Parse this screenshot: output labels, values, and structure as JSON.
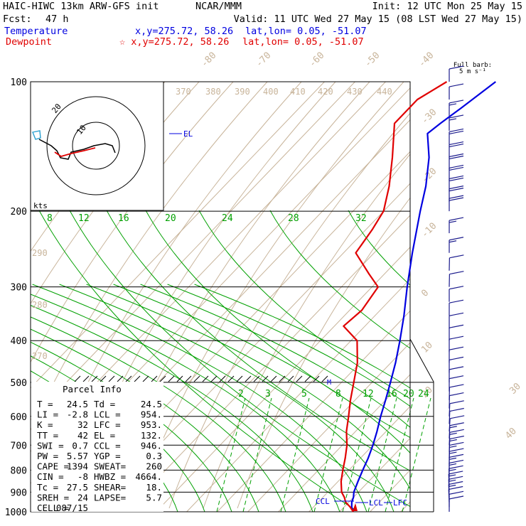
{
  "header": {
    "model": "HAIC-HIWC 13km ARW-GFS init",
    "org": "NCAR/MMM",
    "init": "Init: 12 UTC Mon 25 May 15",
    "fcst_label": "Fcst:",
    "fcst_hours": "47 h",
    "valid": "Valid: 11 UTC Wed 27 May 15 (08 LST Wed 27 May 15)",
    "temperature_label": "Temperature",
    "dewpoint_label": "Dewpoint",
    "temp_xy": "x,y=275.72, 58.26",
    "temp_latlon": "lat,lon=  0.05, -51.07",
    "dew_xy": "☆ x,y=275.72, 58.26",
    "dew_latlon": "lat,lon=  0.05, -51.07",
    "full_barb": "Full barb:",
    "barb_units": "5 m s⁻¹"
  },
  "hodograph": {
    "units": "kts",
    "ring_labels": [
      "20",
      "10"
    ]
  },
  "parcel_info": {
    "title": "Parcel Info",
    "rows": [
      [
        "T",
        "24.5",
        "Td",
        "24.5"
      ],
      [
        "LI",
        "-2.8",
        "LCL",
        "954."
      ],
      [
        "K",
        "32",
        "LFC",
        "953."
      ],
      [
        "TT",
        "42",
        "EL",
        "132."
      ],
      [
        "SWI",
        "0.7",
        "CCL",
        "946."
      ],
      [
        "PW",
        "5.57",
        "YGP",
        "0.3"
      ],
      [
        "CAPE",
        "1394",
        "SWEAT",
        "260"
      ],
      [
        "CIN",
        "-8",
        "HWBZ",
        "4664."
      ],
      [
        "Tc",
        "27.5",
        "SHEAR",
        "18."
      ],
      [
        "SREH",
        "24",
        "LAPSE",
        "5.7"
      ],
      [
        "CELL",
        "087/15",
        "",
        ""
      ]
    ]
  },
  "colors": {
    "temperature": "#0000e0",
    "dewpoint": "#e00000",
    "isotherm": "#c8b49a",
    "dry_adiabat": "#c8b49a",
    "mixing_ratio": "#00a000",
    "moist_adiabat": "#00a000",
    "barb": "#1a1a8c",
    "hodo_shear": "#e00000",
    "hodo_track": "#000000",
    "hodo_start": "#2aa0d0"
  },
  "chart_data": {
    "type": "line",
    "title": "Skew-T log-P sounding",
    "pressure_levels_hPa": [
      100,
      200,
      300,
      400,
      500,
      600,
      700,
      800,
      900,
      1000
    ],
    "isotherm_labels_C": [
      "-80",
      "-70",
      "-60",
      "-50",
      "-40",
      "-30",
      "-20",
      "-10",
      "0",
      "10",
      "20",
      "30",
      "40"
    ],
    "theta_labels_K": [
      "370",
      "380",
      "390",
      "400",
      "410",
      "420",
      "430",
      "440",
      "290",
      "280",
      "270"
    ],
    "mixing_ratio_labels_gkg": [
      "8",
      "12",
      "16",
      "20",
      "24",
      "28",
      "32"
    ],
    "mixing_ratio_lower_labels": [
      "2",
      "3",
      "5",
      "8",
      "12",
      "16",
      "20",
      "24"
    ],
    "level_markers": [
      "EL",
      "CCL",
      "LCL",
      "LFC",
      "M"
    ],
    "series": [
      {
        "name": "Temperature",
        "points": [
          [
            1000,
            24.5
          ],
          [
            975,
            22.5
          ],
          [
            950,
            21.0
          ],
          [
            925,
            20.0
          ],
          [
            900,
            18.5
          ],
          [
            850,
            16.5
          ],
          [
            800,
            14.5
          ],
          [
            750,
            12.5
          ],
          [
            700,
            10.0
          ],
          [
            650,
            7.0
          ],
          [
            600,
            3.5
          ],
          [
            550,
            0.0
          ],
          [
            500,
            -4.0
          ],
          [
            450,
            -8.5
          ],
          [
            400,
            -14.0
          ],
          [
            350,
            -20.5
          ],
          [
            300,
            -28.5
          ],
          [
            250,
            -37.5
          ],
          [
            200,
            -48.0
          ],
          [
            175,
            -54.0
          ],
          [
            150,
            -62.0
          ],
          [
            132,
            -70.0
          ],
          [
            125,
            -69.0
          ],
          [
            115,
            -67.0
          ],
          [
            100,
            -64.0
          ]
        ]
      },
      {
        "name": "Dewpoint",
        "points": [
          [
            1000,
            24.5
          ],
          [
            975,
            22.0
          ],
          [
            950,
            19.0
          ],
          [
            925,
            17.0
          ],
          [
            900,
            14.5
          ],
          [
            850,
            11.0
          ],
          [
            800,
            8.0
          ],
          [
            750,
            5.0
          ],
          [
            700,
            1.5
          ],
          [
            650,
            -3.0
          ],
          [
            600,
            -7.0
          ],
          [
            550,
            -11.5
          ],
          [
            500,
            -16.0
          ],
          [
            450,
            -21.0
          ],
          [
            400,
            -28.0
          ],
          [
            370,
            -37.0
          ],
          [
            340,
            -36.0
          ],
          [
            300,
            -38.0
          ],
          [
            280,
            -45.0
          ],
          [
            250,
            -56.0
          ],
          [
            220,
            -58.0
          ],
          [
            200,
            -60.0
          ],
          [
            175,
            -66.0
          ],
          [
            150,
            -74.0
          ],
          [
            125,
            -84.0
          ],
          [
            110,
            -84.0
          ],
          [
            100,
            -80.0
          ]
        ]
      }
    ],
    "wind_barbs_kt": [
      {
        "p": 1000,
        "spd": 10,
        "dir": 90
      },
      {
        "p": 975,
        "spd": 12,
        "dir": 90
      },
      {
        "p": 950,
        "spd": 14,
        "dir": 80
      },
      {
        "p": 925,
        "spd": 15,
        "dir": 80
      },
      {
        "p": 900,
        "spd": 15,
        "dir": 80
      },
      {
        "p": 875,
        "spd": 15,
        "dir": 80
      },
      {
        "p": 850,
        "spd": 15,
        "dir": 85
      },
      {
        "p": 825,
        "spd": 15,
        "dir": 90
      },
      {
        "p": 800,
        "spd": 15,
        "dir": 90
      },
      {
        "p": 775,
        "spd": 15,
        "dir": 95
      },
      {
        "p": 750,
        "spd": 15,
        "dir": 95
      },
      {
        "p": 725,
        "spd": 15,
        "dir": 100
      },
      {
        "p": 700,
        "spd": 15,
        "dir": 100
      },
      {
        "p": 675,
        "spd": 15,
        "dir": 100
      },
      {
        "p": 650,
        "spd": 12,
        "dir": 105
      },
      {
        "p": 625,
        "spd": 12,
        "dir": 100
      },
      {
        "p": 600,
        "spd": 12,
        "dir": 100
      },
      {
        "p": 575,
        "spd": 12,
        "dir": 95
      },
      {
        "p": 550,
        "spd": 10,
        "dir": 95
      },
      {
        "p": 525,
        "spd": 10,
        "dir": 90
      },
      {
        "p": 500,
        "spd": 10,
        "dir": 90
      },
      {
        "p": 475,
        "spd": 10,
        "dir": 90
      },
      {
        "p": 450,
        "spd": 10,
        "dir": 90
      },
      {
        "p": 425,
        "spd": 10,
        "dir": 90
      },
      {
        "p": 400,
        "spd": 10,
        "dir": 90
      },
      {
        "p": 375,
        "spd": 10,
        "dir": 90
      },
      {
        "p": 350,
        "spd": 10,
        "dir": 90
      },
      {
        "p": 325,
        "spd": 10,
        "dir": 90
      },
      {
        "p": 300,
        "spd": 10,
        "dir": 95
      },
      {
        "p": 275,
        "spd": 12,
        "dir": 95
      },
      {
        "p": 250,
        "spd": 15,
        "dir": 90
      },
      {
        "p": 225,
        "spd": 18,
        "dir": 90
      },
      {
        "p": 200,
        "spd": 20,
        "dir": 90
      },
      {
        "p": 190,
        "spd": 22,
        "dir": 90
      },
      {
        "p": 180,
        "spd": 22,
        "dir": 90
      },
      {
        "p": 170,
        "spd": 22,
        "dir": 90
      },
      {
        "p": 160,
        "spd": 22,
        "dir": 90
      },
      {
        "p": 150,
        "spd": 20,
        "dir": 90
      },
      {
        "p": 140,
        "spd": 20,
        "dir": 90
      },
      {
        "p": 130,
        "spd": 18,
        "dir": 90
      },
      {
        "p": 120,
        "spd": 15,
        "dir": 90
      },
      {
        "p": 110,
        "spd": 12,
        "dir": 90
      },
      {
        "p": 100,
        "spd": 10,
        "dir": 90
      }
    ]
  }
}
